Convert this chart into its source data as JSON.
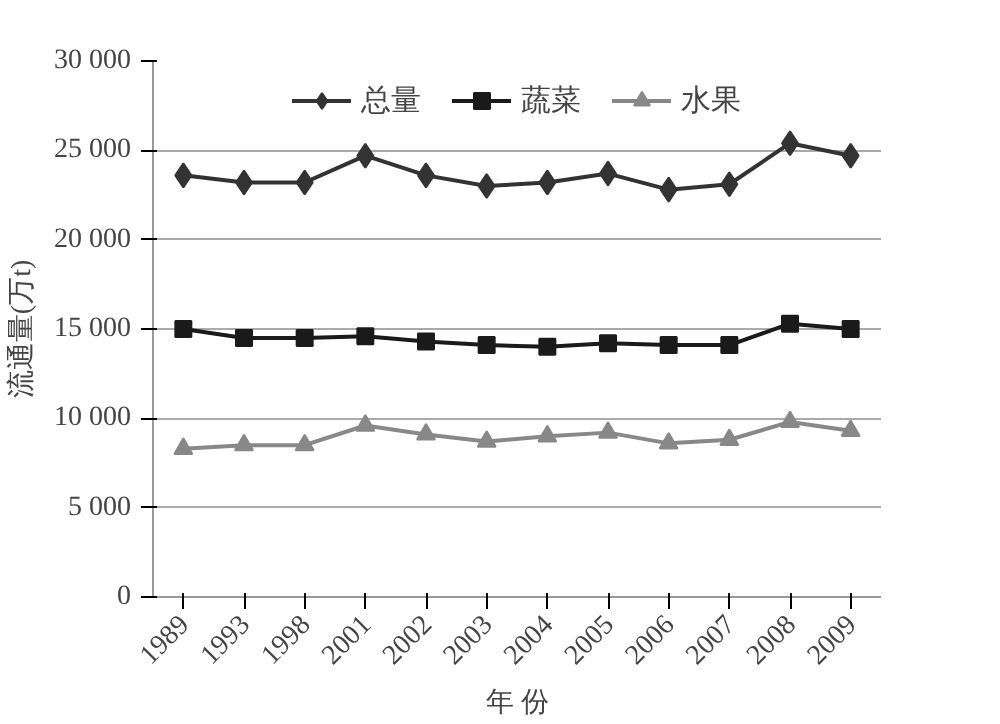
{
  "chart_data": {
    "type": "line",
    "xlabel": "年 份",
    "ylabel": "流通量(万t)",
    "categories": [
      "1989",
      "1993",
      "1998",
      "2001",
      "2002",
      "2003",
      "2004",
      "2005",
      "2006",
      "2007",
      "2008",
      "2009"
    ],
    "series": [
      {
        "name": "总量",
        "color": "#333333",
        "marker": "diamond",
        "values": [
          23600,
          23200,
          23200,
          24700,
          23600,
          23000,
          23200,
          23700,
          22800,
          23100,
          25400,
          24700
        ]
      },
      {
        "name": "蔬菜",
        "color": "#1a1a1a",
        "marker": "square",
        "values": [
          15000,
          14500,
          14500,
          14600,
          14300,
          14100,
          14000,
          14200,
          14100,
          14100,
          15300,
          15000
        ]
      },
      {
        "name": "水果",
        "color": "#888888",
        "marker": "triangle",
        "values": [
          8300,
          8500,
          8500,
          9600,
          9100,
          8700,
          9000,
          9200,
          8600,
          8800,
          9800,
          9300
        ]
      }
    ],
    "ylim": [
      0,
      30000
    ],
    "yticks": [
      {
        "value": 0,
        "label": "0"
      },
      {
        "value": 5000,
        "label": "5 000"
      },
      {
        "value": 10000,
        "label": "10 000"
      },
      {
        "value": 15000,
        "label": "15 000"
      },
      {
        "value": 20000,
        "label": "20 000"
      },
      {
        "value": 25000,
        "label": "25 000"
      },
      {
        "value": 30000,
        "label": "30 000"
      }
    ],
    "grid": "y",
    "legend": "top",
    "line_style": "solid"
  }
}
